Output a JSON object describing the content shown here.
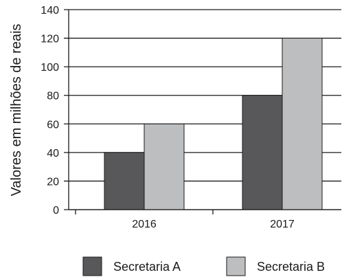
{
  "chart_data": {
    "type": "bar",
    "categories": [
      "2016",
      "2017"
    ],
    "series": [
      {
        "name": "Secretaria A",
        "values": [
          40,
          80
        ],
        "color": "#58585a"
      },
      {
        "name": "Secretaria B",
        "values": [
          60,
          120
        ],
        "color": "#bdbec0"
      }
    ],
    "ylabel": "Valores em milhões de reais",
    "xlabel": "",
    "ylim": [
      0,
      140
    ],
    "yticks": [
      0,
      20,
      40,
      60,
      80,
      100,
      120,
      140
    ],
    "grid": true,
    "legend": "bottom"
  }
}
